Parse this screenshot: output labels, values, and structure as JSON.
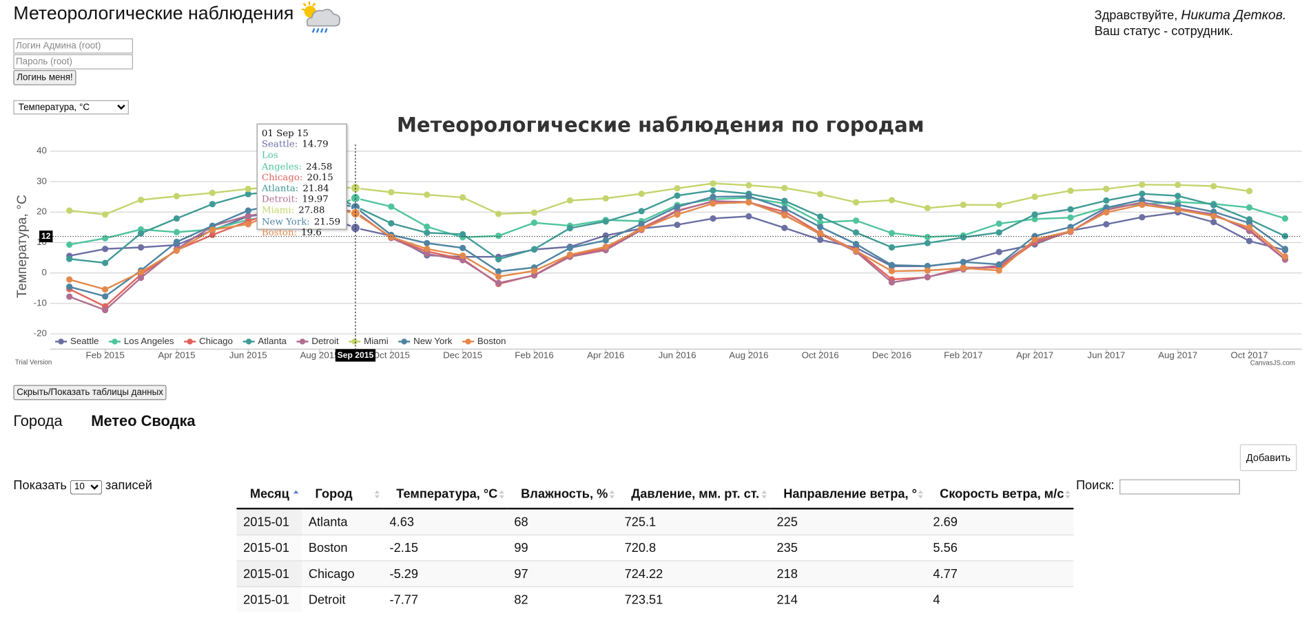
{
  "header": {
    "title": "Метеорологические наблюдения",
    "greeting": "Здравствуйте,",
    "user_name": "Никита Детков.",
    "status": "Ваш статус - сотрудник."
  },
  "login": {
    "login_placeholder": "Логин Админа (root)",
    "password_placeholder": "Пароль (root)",
    "button": "Логинь меня!"
  },
  "measure_select": "Температура, °C",
  "chart_data": {
    "type": "line",
    "title": "Метеорологические наблюдения по городам",
    "y_label": "Температура, °C",
    "watermark": "Trial Version",
    "credit": "CanvasJS.com",
    "x": [
      "Jan 2015",
      "Feb 2015",
      "Mar 2015",
      "Apr 2015",
      "May 2015",
      "Jun 2015",
      "Jul 2015",
      "Aug 2015",
      "Sep 2015",
      "Oct 2015",
      "Nov 2015",
      "Dec 2015",
      "Jan 2016",
      "Feb 2016",
      "Mar 2016",
      "Apr 2016",
      "May 2016",
      "Jun 2016",
      "Jul 2016",
      "Aug 2016",
      "Sep 2016",
      "Oct 2016",
      "Nov 2016",
      "Dec 2016",
      "Jan 2017",
      "Feb 2017",
      "Mar 2017",
      "Apr 2017",
      "May 2017",
      "Jun 2017",
      "Jul 2017",
      "Aug 2017",
      "Sep 2017",
      "Oct 2017",
      "Nov 2017"
    ],
    "xticks": [
      "Feb 2015",
      "Apr 2015",
      "Jun 2015",
      "Aug 2015",
      "Oct 2015",
      "Dec 2015",
      "Feb 2016",
      "Apr 2016",
      "Jun 2016",
      "Aug 2016",
      "Oct 2016",
      "Dec 2016",
      "Feb 2017",
      "Apr 2017",
      "Jun 2017",
      "Aug 2017",
      "Oct 2017"
    ],
    "ylim": [
      -25,
      40
    ],
    "yticks": [
      -20,
      -10,
      0,
      10,
      20,
      30,
      40
    ],
    "grid": true,
    "legend": "bottom-left",
    "series": [
      {
        "name": "Seattle",
        "color": "#6b6fa3",
        "values": [
          5.6,
          7.9,
          8.4,
          9.2,
          14,
          18.6,
          20,
          19.5,
          14.79,
          12.2,
          5.8,
          5.3,
          5.3,
          7.7,
          8.6,
          12.3,
          14.6,
          15.8,
          17.9,
          18.6,
          14.8,
          10.9,
          8.3,
          2.2,
          2.2,
          3.6,
          6.9,
          9.4,
          13.9,
          16,
          18.3,
          19.9,
          16.7,
          10.5,
          7.5
        ]
      },
      {
        "name": "Los Angeles",
        "color": "#4fc49c",
        "values": [
          9.3,
          11.4,
          14.3,
          13.4,
          14.3,
          17.5,
          19,
          20,
          24.58,
          21.8,
          15.2,
          11.7,
          12.2,
          16.5,
          15.5,
          17.4,
          17,
          22.3,
          24.2,
          24.7,
          22.8,
          16.6,
          17.2,
          13.1,
          11.8,
          12.3,
          16.2,
          17.7,
          18.2,
          21.6,
          22.6,
          23.3,
          22.7,
          21.5,
          17.9
        ]
      },
      {
        "name": "Chicago",
        "color": "#e0645c",
        "values": [
          -5.29,
          -11,
          -0.5,
          7.5,
          12.5,
          17,
          21,
          21.5,
          20.15,
          11.5,
          7.1,
          4.6,
          -3.6,
          -0.7,
          5.7,
          8,
          14.7,
          20.5,
          23.4,
          23.2,
          20.1,
          13.1,
          7.5,
          -2.1,
          -1.4,
          1.8,
          1.7,
          10,
          13.5,
          20.7,
          23.1,
          21.2,
          19.2,
          14.2,
          4.5
        ]
      },
      {
        "name": "Atlanta",
        "color": "#3f9b96",
        "values": [
          4.63,
          3.3,
          13,
          17.9,
          22.6,
          25.9,
          27,
          27.5,
          21.84,
          16.3,
          13.2,
          12.7,
          4.5,
          7.8,
          14.7,
          16.9,
          20.3,
          25.4,
          27.1,
          26,
          23.7,
          18.5,
          13.3,
          8.4,
          9.8,
          11.7,
          13.3,
          19.2,
          20.9,
          23.8,
          26,
          25.3,
          22.3,
          17.6,
          12.1
        ]
      },
      {
        "name": "Detroit",
        "color": "#b06e90",
        "values": [
          -7.77,
          -12.2,
          -1.6,
          7.8,
          15.4,
          18.8,
          20.5,
          21.3,
          19.97,
          11.5,
          6.3,
          4.2,
          -3.3,
          -0.8,
          5.3,
          7.5,
          14.1,
          20.3,
          23.6,
          23.3,
          19.1,
          12.7,
          7,
          -3.1,
          -1.3,
          1.2,
          2.4,
          10.5,
          13.5,
          20.8,
          23.2,
          21,
          19.3,
          13.8,
          4.4
        ]
      },
      {
        "name": "Miami",
        "color": "#c5d46c",
        "values": [
          20.5,
          19.2,
          24,
          25.2,
          26.3,
          27.6,
          28.5,
          28.5,
          27.88,
          26.5,
          25.7,
          24.8,
          19.4,
          19.8,
          23.8,
          24.5,
          26,
          27.8,
          29.4,
          28.8,
          27.9,
          25.9,
          23.2,
          23.9,
          21.3,
          22.4,
          22.3,
          25,
          27,
          27.6,
          29,
          28.9,
          28.5,
          26.9,
          null
        ]
      },
      {
        "name": "New York",
        "color": "#4e84a2",
        "values": [
          -4.5,
          -7.7,
          0.8,
          10.2,
          15.5,
          20.5,
          23,
          24,
          21.59,
          12.5,
          9.8,
          8.2,
          0.5,
          1.8,
          8.2,
          10.7,
          16.1,
          21.7,
          25,
          25.2,
          21.2,
          15.1,
          9.5,
          2.6,
          2.3,
          3.6,
          2.8,
          12.1,
          15.1,
          21.4,
          24,
          22.4,
          20.1,
          16.4,
          7.9
        ]
      },
      {
        "name": "Boston",
        "color": "#e4894b",
        "values": [
          -2.15,
          -5.4,
          0.3,
          7.3,
          14.2,
          16,
          21,
          22,
          19.6,
          11.8,
          7.9,
          5.7,
          -1.2,
          0.7,
          6,
          8.6,
          14.4,
          19.2,
          22.8,
          23.2,
          18.9,
          12.9,
          7.3,
          0.6,
          0.8,
          1.6,
          0.8,
          11,
          13.7,
          19.9,
          22.4,
          20.8,
          18.7,
          15,
          5.4
        ]
      }
    ],
    "crosshair": {
      "x": "Sep 2015",
      "y": 12
    },
    "tooltip": {
      "title": "01 Sep 15"
    }
  },
  "toggle_button": "Скрыть/Показать таблицы данных",
  "tabs": [
    "Города",
    "Метео Сводка"
  ],
  "add_button": "Добавить",
  "table_controls": {
    "show_label": "Показать",
    "page_size": 10,
    "entries_label": "записей",
    "search_label": "Поиск:"
  },
  "table": {
    "columns": [
      "Месяц",
      "Город",
      "Температура, °C",
      "Влажность, %",
      "Давление, мм. рт. ст.",
      "Направление ветра, °",
      "Скорость ветра, м/с"
    ],
    "rows": [
      [
        "2015-01",
        "Atlanta",
        4.63,
        68,
        725.1,
        225,
        2.69
      ],
      [
        "2015-01",
        "Boston",
        -2.15,
        99,
        720.8,
        235,
        5.56
      ],
      [
        "2015-01",
        "Chicago",
        -5.29,
        97,
        724.22,
        218,
        4.77
      ],
      [
        "2015-01",
        "Detroit",
        -7.77,
        82,
        723.51,
        214,
        4
      ]
    ]
  }
}
